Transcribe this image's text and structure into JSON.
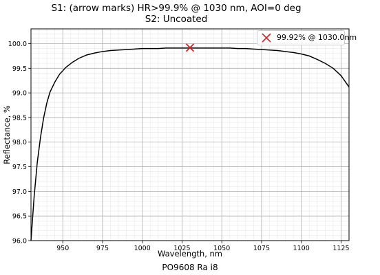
{
  "chart_data": {
    "type": "line",
    "title": "S1: (arrow marks) HR>99.9% @ 1030 nm, AOI=0 deg",
    "subtitle": "S2: Uncoated",
    "xlabel": "Wavelength, nm",
    "ylabel": "Reflectance, %",
    "footer": "PO9608 Ra i8",
    "xlim": [
      930,
      1130
    ],
    "ylim": [
      96.0,
      100.3
    ],
    "x_ticks": [
      950,
      975,
      1000,
      1025,
      1050,
      1075,
      1100,
      1125
    ],
    "y_ticks": [
      96.0,
      96.5,
      97.0,
      97.5,
      98.0,
      98.5,
      99.0,
      99.5,
      100.0
    ],
    "x_tick_labels": [
      "950",
      "975",
      "1000",
      "1025",
      "1050",
      "1075",
      "1100",
      "1125"
    ],
    "y_tick_labels": [
      "96.0",
      "96.5",
      "97.0",
      "97.5",
      "98.0",
      "98.5",
      "99.0",
      "99.5",
      "100.0"
    ],
    "grid": true,
    "legend_position": "top-right",
    "series": [
      {
        "color": "#000000",
        "x": [
          930,
          932,
          934,
          936,
          938,
          940,
          942,
          945,
          948,
          952,
          956,
          960,
          965,
          970,
          975,
          980,
          985,
          990,
          995,
          1000,
          1005,
          1010,
          1015,
          1020,
          1025,
          1030,
          1035,
          1040,
          1045,
          1050,
          1055,
          1060,
          1065,
          1070,
          1075,
          1080,
          1085,
          1090,
          1095,
          1100,
          1105,
          1110,
          1115,
          1120,
          1125,
          1130
        ],
        "y": [
          96.0,
          96.9,
          97.6,
          98.1,
          98.5,
          98.8,
          99.02,
          99.22,
          99.38,
          99.52,
          99.62,
          99.7,
          99.77,
          99.81,
          99.84,
          99.86,
          99.87,
          99.88,
          99.89,
          99.9,
          99.9,
          99.9,
          99.91,
          99.91,
          99.91,
          99.91,
          99.91,
          99.91,
          99.91,
          99.91,
          99.91,
          99.9,
          99.9,
          99.89,
          99.88,
          99.87,
          99.86,
          99.84,
          99.82,
          99.79,
          99.75,
          99.68,
          99.6,
          99.5,
          99.35,
          99.12
        ]
      }
    ],
    "marker": {
      "x": 1030.0,
      "y": 99.92,
      "symbol": "x",
      "color": "#cc2222",
      "label": "99.92% @ 1030.0nm"
    }
  }
}
